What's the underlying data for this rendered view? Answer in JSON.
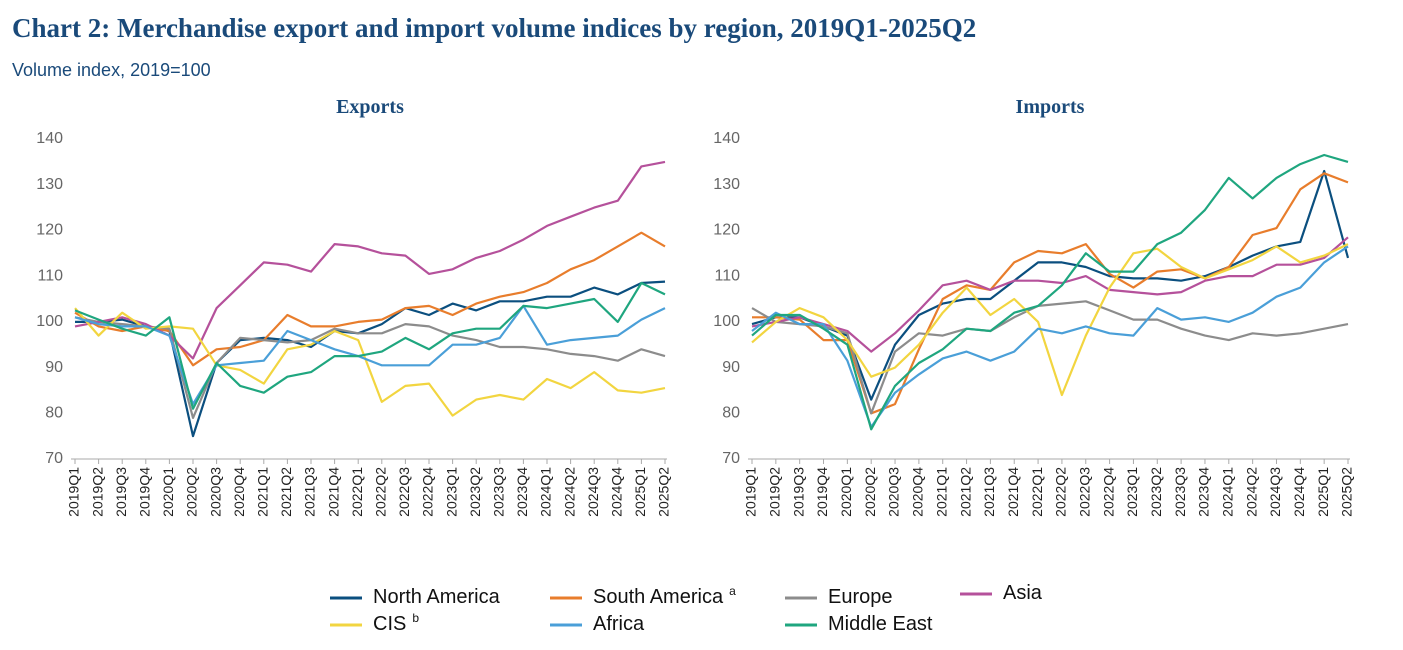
{
  "title": "Chart 2: Merchandise export and import volume indices by region, 2019Q1-2025Q2",
  "subtitle": "Volume index, 2019=100",
  "series": [
    {
      "name": "North America",
      "color": "#0b4f7f"
    },
    {
      "name": "South America",
      "note": "a",
      "color": "#e87d2c"
    },
    {
      "name": "Europe",
      "color": "#8c8c8c"
    },
    {
      "name": "Asia",
      "color": "#b5519b"
    },
    {
      "name": "CIS",
      "note": "b",
      "color": "#f2d540"
    },
    {
      "name": "Africa",
      "color": "#4a9fd8"
    },
    {
      "name": "Middle East",
      "color": "#1fa67f"
    }
  ],
  "chart_data": [
    {
      "type": "line",
      "title": "Exports",
      "categories": [
        "2019Q1",
        "2019Q2",
        "2019Q3",
        "2019Q4",
        "2020Q1",
        "2020Q2",
        "2020Q3",
        "2020Q4",
        "2021Q1",
        "2021Q2",
        "2021Q3",
        "2021Q4",
        "2022Q1",
        "2022Q2",
        "2022Q3",
        "2022Q4",
        "2023Q1",
        "2023Q2",
        "2023Q3",
        "2023Q4",
        "2024Q1",
        "2024Q2",
        "2024Q3",
        "2024Q4",
        "2025Q1",
        "2025Q2"
      ],
      "ylim": [
        70,
        140
      ],
      "yticks": [
        70,
        80,
        90,
        100,
        110,
        120,
        130,
        140
      ],
      "series": [
        {
          "values": [
            100,
            100,
            100.5,
            99,
            98,
            75,
            91,
            96,
            96.5,
            96,
            94.5,
            98,
            97.5,
            99.5,
            103,
            101.5,
            104,
            102.5,
            104.5,
            104.5,
            105.5,
            105.5,
            107.5,
            106,
            108.5,
            108.8
          ]
        },
        {
          "values": [
            102,
            99,
            98,
            99,
            98,
            90.5,
            94,
            94.5,
            96,
            101.5,
            99,
            99,
            100,
            100.5,
            103,
            103.5,
            101.5,
            104,
            105.5,
            106.5,
            108.5,
            111.5,
            113.5,
            116.5,
            119.5,
            116.5
          ]
        },
        {
          "values": [
            101,
            100,
            99.5,
            99,
            98.5,
            79,
            91,
            96.5,
            96,
            95.5,
            96,
            98.5,
            97.5,
            97.5,
            99.5,
            99,
            97,
            96,
            94.5,
            94.5,
            94,
            93,
            92.5,
            91.5,
            94,
            92.5
          ]
        },
        {
          "values": [
            99,
            100,
            101,
            99.5,
            97,
            92,
            103,
            108,
            113,
            112.5,
            111,
            117,
            116.5,
            115,
            114.5,
            110.5,
            111.5,
            114,
            115.5,
            118,
            121,
            123,
            125,
            126.5,
            134,
            135
          ]
        },
        {
          "values": [
            103,
            97,
            102,
            98.5,
            99,
            98.5,
            90.5,
            89.5,
            86.5,
            94,
            95,
            98,
            96,
            82.5,
            86,
            86.5,
            79.5,
            83,
            84,
            83,
            87.5,
            85.5,
            89,
            85,
            84.5,
            85.5
          ]
        },
        {
          "values": [
            101,
            99.5,
            99,
            99,
            97,
            82,
            90.5,
            91,
            91.5,
            98,
            96,
            94,
            92.5,
            90.5,
            90.5,
            90.5,
            95,
            95,
            96.5,
            103.5,
            95,
            96,
            96.5,
            97,
            100.5,
            103
          ]
        },
        {
          "values": [
            102.5,
            100.5,
            98.5,
            97,
            101,
            81,
            91,
            86,
            84.5,
            88,
            89,
            92.5,
            92.5,
            93.5,
            96.5,
            94,
            97.5,
            98.5,
            98.5,
            103.5,
            103,
            104,
            105,
            100,
            108.5,
            106
          ]
        }
      ]
    },
    {
      "type": "line",
      "title": "Imports",
      "categories": [
        "2019Q1",
        "2019Q2",
        "2019Q3",
        "2019Q4",
        "2020Q1",
        "2020Q2",
        "2020Q3",
        "2020Q4",
        "2021Q1",
        "2021Q2",
        "2021Q3",
        "2021Q4",
        "2022Q1",
        "2022Q2",
        "2022Q3",
        "2022Q4",
        "2023Q1",
        "2023Q2",
        "2023Q3",
        "2023Q4",
        "2024Q1",
        "2024Q2",
        "2024Q3",
        "2024Q4",
        "2025Q1",
        "2025Q2"
      ],
      "ylim": [
        70,
        140
      ],
      "yticks": [
        70,
        80,
        90,
        100,
        110,
        120,
        130,
        140
      ],
      "series": [
        {
          "values": [
            99.5,
            101,
            101,
            99,
            97,
            83,
            95,
            101.5,
            104,
            105,
            105,
            109,
            113,
            113,
            112,
            110,
            109.5,
            109.5,
            109,
            110,
            112,
            114.5,
            116.5,
            117.5,
            133,
            114
          ]
        },
        {
          "values": [
            101,
            101,
            100.5,
            96,
            96,
            80,
            82,
            94,
            105,
            108,
            107,
            113,
            115.5,
            115,
            117,
            110.5,
            107.5,
            111,
            111.5,
            109.5,
            112,
            119,
            120.5,
            129,
            132.5,
            130.5
          ]
        },
        {
          "values": [
            103,
            100,
            99.5,
            99,
            97.5,
            80,
            93.5,
            97.5,
            97,
            98.5,
            98,
            101,
            103.5,
            104,
            104.5,
            102.5,
            100.5,
            100.5,
            98.5,
            97,
            96,
            97.5,
            97,
            97.5,
            98.5,
            99.5
          ]
        },
        {
          "values": [
            99,
            100,
            101,
            99.5,
            98,
            93.5,
            97.5,
            102.5,
            108,
            109,
            107,
            109,
            109,
            108.5,
            110,
            107,
            106.5,
            106,
            106.5,
            109,
            110,
            110,
            112.5,
            112.5,
            114,
            118.5
          ]
        },
        {
          "values": [
            95.5,
            100,
            103,
            101,
            96,
            88,
            90,
            95,
            102,
            107.5,
            101.5,
            105,
            100,
            84,
            97,
            107.5,
            115,
            116,
            112,
            109.5,
            111.5,
            113.5,
            116.5,
            113,
            114.5,
            117
          ]
        },
        {
          "values": [
            98,
            102,
            99.5,
            99.5,
            91.5,
            77,
            84.5,
            88.5,
            92,
            93.5,
            91.5,
            93.5,
            98.5,
            97.5,
            99,
            97.5,
            97,
            103,
            100.5,
            101,
            100,
            102,
            105.5,
            107.5,
            113,
            116.5
          ]
        },
        {
          "values": [
            97,
            101.5,
            101.5,
            98.5,
            95,
            76.5,
            86,
            91,
            94,
            98.5,
            98,
            102,
            103.5,
            108,
            115,
            111,
            111,
            117,
            119.5,
            124.5,
            131.5,
            127,
            131.5,
            134.5,
            136.5,
            135
          ]
        }
      ]
    }
  ]
}
